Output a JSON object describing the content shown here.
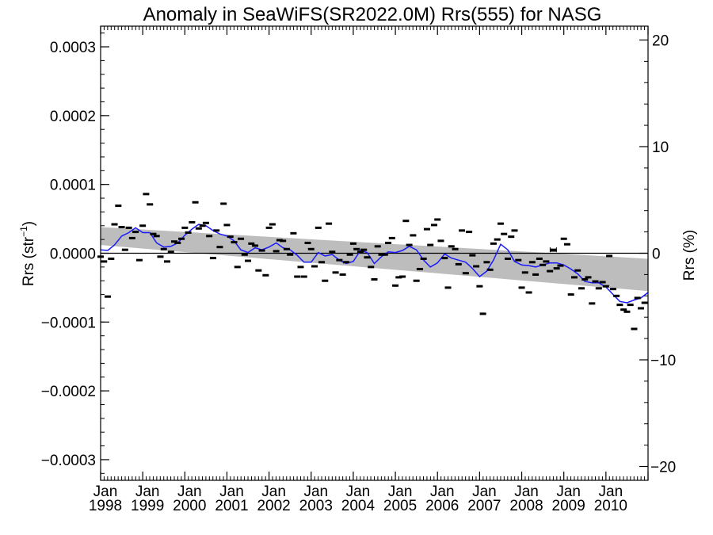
{
  "chart_data": {
    "type": "scatter",
    "title": "Anomaly in SeaWiFS(SR2022.0M) Rrs(555) for NASG",
    "ylabel_left": {
      "main": "Rrs (str",
      "sup": "−1",
      "close": ")"
    },
    "ylabel_right": "Rrs (%)",
    "y_left": {
      "lim": [
        -0.00033,
        0.00033
      ],
      "ticks": [
        0.0003,
        0.0002,
        0.0001,
        0.0,
        -0.0001,
        -0.0002,
        -0.0003
      ],
      "tick_labels": [
        "0.0003",
        "0.0002",
        "0.0001",
        "0.0000",
        "−0.0001",
        "−0.0002",
        "−0.0003"
      ]
    },
    "y_right": {
      "lim": [
        -21.3,
        21.3
      ],
      "ticks": [
        20,
        10,
        0,
        -10,
        -20
      ],
      "tick_labels": [
        "20",
        "10",
        "0",
        "−10",
        "−20"
      ]
    },
    "x": {
      "lim": [
        1998.0,
        2011.0
      ],
      "ticks": [
        1998,
        1999,
        2000,
        2001,
        2002,
        2003,
        2004,
        2005,
        2006,
        2007,
        2008,
        2009,
        2010
      ],
      "tick_labels_top": [
        "Jan",
        "Jan",
        "Jan",
        "Jan",
        "Jan",
        "Jan",
        "Jan",
        "Jan",
        "Jan",
        "Jan",
        "Jan",
        "Jan",
        "Jan"
      ],
      "tick_labels_bottom": [
        "1998",
        "1999",
        "2000",
        "2001",
        "2002",
        "2003",
        "2004",
        "2005",
        "2006",
        "2007",
        "2008",
        "2009",
        "2010"
      ]
    },
    "zero_line": 0.0,
    "trend_band": {
      "x": [
        1998.0,
        2011.0
      ],
      "upper": [
        3.8e-05,
        -8e-06
      ],
      "lower": [
        1.2e-05,
        -5.5e-05
      ]
    },
    "monthly_points": {
      "x": [
        1998.0,
        1998.08,
        1998.17,
        1998.25,
        1998.33,
        1998.42,
        1998.5,
        1998.58,
        1998.67,
        1998.75,
        1998.83,
        1998.92,
        1999.0,
        1999.08,
        1999.17,
        1999.25,
        1999.33,
        1999.42,
        1999.5,
        1999.58,
        1999.67,
        1999.75,
        1999.83,
        1999.92,
        2000.0,
        2000.08,
        2000.17,
        2000.25,
        2000.33,
        2000.42,
        2000.5,
        2000.58,
        2000.67,
        2000.75,
        2000.83,
        2000.92,
        2001.0,
        2001.08,
        2001.17,
        2001.25,
        2001.33,
        2001.42,
        2001.5,
        2001.58,
        2001.67,
        2001.75,
        2001.83,
        2001.92,
        2002.0,
        2002.08,
        2002.17,
        2002.25,
        2002.33,
        2002.42,
        2002.5,
        2002.58,
        2002.67,
        2002.75,
        2002.83,
        2002.92,
        2003.0,
        2003.08,
        2003.17,
        2003.25,
        2003.33,
        2003.42,
        2003.5,
        2003.58,
        2003.67,
        2003.75,
        2003.83,
        2003.92,
        2004.0,
        2004.08,
        2004.17,
        2004.25,
        2004.33,
        2004.42,
        2004.5,
        2004.58,
        2004.67,
        2004.75,
        2004.83,
        2004.92,
        2005.0,
        2005.08,
        2005.17,
        2005.25,
        2005.33,
        2005.42,
        2005.5,
        2005.58,
        2005.67,
        2005.75,
        2005.83,
        2005.92,
        2006.0,
        2006.08,
        2006.17,
        2006.25,
        2006.33,
        2006.42,
        2006.5,
        2006.58,
        2006.67,
        2006.75,
        2006.83,
        2006.92,
        2007.0,
        2007.08,
        2007.17,
        2007.25,
        2007.33,
        2007.42,
        2007.5,
        2007.58,
        2007.67,
        2007.75,
        2007.83,
        2007.92,
        2008.0,
        2008.08,
        2008.17,
        2008.25,
        2008.33,
        2008.42,
        2008.5,
        2008.58,
        2008.67,
        2008.75,
        2008.83,
        2008.92,
        2009.0,
        2009.08,
        2009.17,
        2009.25,
        2009.33,
        2009.42,
        2009.5,
        2009.58,
        2009.67,
        2009.75,
        2009.83,
        2009.92,
        2010.0,
        2010.08,
        2010.17,
        2010.25,
        2010.33,
        2010.42,
        2010.5,
        2010.58,
        2010.67,
        2010.75,
        2010.83,
        2010.92
      ],
      "y": [
        -5e-06,
        -1.2e-05,
        -6.3e-05,
        -8e-06,
        4.2e-05,
        6.9e-05,
        3.8e-05,
        5e-06,
        3.7e-05,
        2.2e-05,
        3.1e-05,
        -1e-05,
        4e-05,
        8.6e-05,
        7.1e-05,
        2.8e-05,
        2.5e-05,
        -5e-06,
        6e-06,
        -1.2e-05,
        2e-06,
        1.7e-05,
        1.5e-05,
        2.1e-05,
        3.7e-05,
        3e-05,
        4.5e-05,
        7.4e-05,
        3.6e-05,
        4e-05,
        4.4e-05,
        2.5e-05,
        -7e-06,
        3.3e-05,
        9e-06,
        7.2e-05,
        4.1e-05,
        2.4e-05,
        1.6e-05,
        -2e-05,
        2.1e-05,
        -2e-06,
        -1.1e-05,
        1.4e-05,
        1.1e-05,
        -2.5e-05,
        4e-06,
        -3.2e-05,
        3.7e-05,
        4.2e-05,
        3e-06,
        1.9e-05,
        1.8e-05,
        6e-06,
        -2e-06,
        2.9e-05,
        -3.4e-05,
        -2e-05,
        -3.4e-05,
        1.5e-05,
        6e-06,
        -1.9e-05,
        3.7e-05,
        -1.3e-05,
        -4e-05,
        4.3e-05,
        2e-06,
        -2.8e-05,
        -1e-05,
        -3.1e-05,
        -1.3e-05,
        -2e-06,
        1.4e-05,
        6e-06,
        2e-06,
        5e-06,
        -6e-06,
        -2e-05,
        -3.8e-05,
        1e-05,
        -2e-06,
        -2e-06,
        1.5e-05,
        2.2e-05,
        -4.7e-05,
        -3.5e-05,
        -3.4e-05,
        4.7e-05,
        1.2e-05,
        2.6e-05,
        -4e-05,
        -2.3e-05,
        -8e-06,
        3.5e-05,
        1.2e-05,
        4.1e-05,
        4.9e-05,
        1.8e-05,
        -7e-06,
        -5e-05,
        1e-05,
        6e-06,
        -1.6e-05,
        3.3e-05,
        -2.9e-05,
        3.1e-05,
        -3e-06,
        -1.9e-05,
        -4.8e-05,
        -8.8e-05,
        -1.3e-05,
        -2.4e-05,
        1.4e-05,
        2e-05,
        4.3e-05,
        2.8e-05,
        -8e-06,
        2.4e-05,
        3.3e-05,
        -1e-05,
        -5e-05,
        -2.8e-05,
        -5.7e-05,
        -1.3e-05,
        -3.1e-05,
        -8e-06,
        -1.7e-05,
        -1.2e-05,
        -2.6e-05,
        4e-06,
        -2.2e-05,
        -1.8e-05,
        2.1e-05,
        1.3e-05,
        -6e-05,
        -3.5e-05,
        -2.5e-05,
        -5.1e-05,
        -3.8e-05,
        -3.5e-05,
        -7.3e-05,
        -4.1e-05,
        -5.1e-05,
        -4.2e-05,
        -4.8e-05,
        -4e-06,
        -5.2e-05,
        -6.2e-05,
        -7.5e-05,
        -8.2e-05,
        -8.5e-05,
        -7.5e-05,
        -0.00011,
        -6.5e-05,
        -8e-05,
        -7.2e-05
      ]
    },
    "errorbar_point": {
      "x": 2008.75,
      "y": 5e-06
    },
    "running_mean": {
      "x": [
        1998.0,
        1998.17,
        1998.33,
        1998.5,
        1998.67,
        1998.83,
        1999.0,
        1999.17,
        1999.33,
        1999.5,
        1999.67,
        1999.83,
        2000.0,
        2000.17,
        2000.33,
        2000.5,
        2000.67,
        2000.83,
        2001.0,
        2001.17,
        2001.33,
        2001.5,
        2001.67,
        2001.83,
        2002.0,
        2002.17,
        2002.33,
        2002.5,
        2002.67,
        2002.83,
        2003.0,
        2003.17,
        2003.33,
        2003.5,
        2003.67,
        2003.83,
        2004.0,
        2004.17,
        2004.33,
        2004.5,
        2004.67,
        2004.83,
        2005.0,
        2005.17,
        2005.33,
        2005.5,
        2005.67,
        2005.83,
        2006.0,
        2006.17,
        2006.33,
        2006.5,
        2006.67,
        2006.83,
        2007.0,
        2007.17,
        2007.33,
        2007.5,
        2007.67,
        2007.83,
        2008.0,
        2008.17,
        2008.33,
        2008.5,
        2008.67,
        2008.83,
        2009.0,
        2009.17,
        2009.33,
        2009.5,
        2009.67,
        2009.83,
        2010.0,
        2010.17,
        2010.33,
        2010.5,
        2010.67,
        2010.83,
        2011.0
      ],
      "y": [
        5e-06,
        4e-06,
        1.2e-05,
        2.5e-05,
        3e-05,
        3.7e-05,
        3e-05,
        3e-05,
        1.5e-05,
        9e-06,
        1e-05,
        1.5e-05,
        2.6e-05,
        3.5e-05,
        4.2e-05,
        4e-05,
        3.3e-05,
        2.8e-05,
        2.5e-05,
        1.8e-05,
        5e-06,
        1e-06,
        8e-06,
        5e-06,
        9e-06,
        1.5e-05,
        8e-06,
        5e-06,
        -3e-06,
        -1.3e-05,
        -1.3e-05,
        1e-06,
        -4e-06,
        -2e-06,
        -1e-05,
        -1.5e-05,
        -1.2e-05,
        4e-06,
        1e-06,
        -1.5e-05,
        -5e-06,
        2e-06,
        1e-06,
        4e-06,
        1e-05,
        5e-06,
        -1e-05,
        -2e-05,
        -1.4e-05,
        -1e-06,
        -7e-06,
        -1e-05,
        -1.3e-05,
        -2.2e-05,
        -3.4e-05,
        -2.6e-05,
        -1e-05,
        1.3e-05,
        5e-06,
        -1.2e-05,
        -1.7e-05,
        -1.8e-05,
        -2e-05,
        -1.7e-05,
        -1.4e-05,
        -1.4e-05,
        -1.7e-05,
        -2.3e-05,
        -3e-05,
        -4.1e-05,
        -4.3e-05,
        -4.3e-05,
        -4.9e-05,
        -6e-05,
        -7e-05,
        -7.2e-05,
        -6.8e-05,
        -6.5e-05,
        -5.7e-05
      ]
    },
    "colors": {
      "points": "#000000",
      "running_mean": "#1a1aff",
      "band": "#bdbdbd",
      "axes": "#000000",
      "zero_line": "#000000"
    }
  }
}
